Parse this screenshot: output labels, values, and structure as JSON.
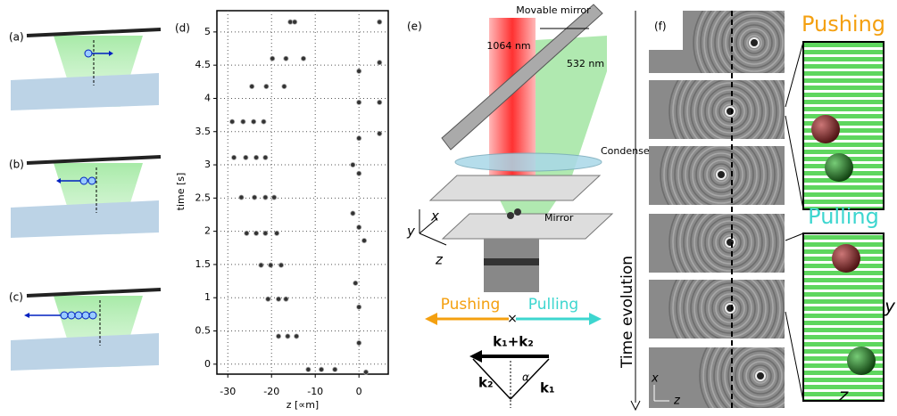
{
  "panel_a": {
    "label": "(a)"
  },
  "panel_b": {
    "label": "(b)"
  },
  "panel_c": {
    "label": "(c)"
  },
  "panel_d": {
    "label": "(d)",
    "xlabel": "z [∝m]",
    "ylabel": "time [s]",
    "xlim": [
      -32.5,
      6.7
    ],
    "ylim": [
      -0.15,
      5.32
    ],
    "xticks": [
      -30,
      -20,
      -10,
      0
    ],
    "yticks": [
      0,
      0.5,
      1,
      1.5,
      2,
      2.5,
      3,
      3.5,
      4,
      4.5,
      5
    ],
    "grid": true,
    "points": {
      "x": [
        -15.7,
        -14.7,
        4.7,
        -19.8,
        -16.7,
        -12.7,
        0,
        4.7,
        -24.5,
        -21.2,
        -17.1,
        0,
        4.7,
        -29,
        -26.5,
        -24.1,
        -21.8,
        0,
        4.7,
        -28.6,
        -25.9,
        -23.5,
        -21.4,
        0,
        -1.4,
        -26.9,
        -23.9,
        -21.4,
        -19.4,
        -1.4,
        0,
        -25.7,
        -23.5,
        -21.4,
        -18.8,
        1.2,
        -22.4,
        -20.2,
        -17.8,
        -0.8,
        -20.8,
        -18.4,
        -16.7,
        0,
        -18.4,
        -16.3,
        -14.3,
        0,
        -11.6,
        -8.6,
        -5.5,
        1.6
      ],
      "y": [
        5.15,
        5.15,
        5.15,
        4.6,
        4.6,
        4.6,
        4.41,
        4.54,
        4.18,
        4.18,
        4.18,
        3.94,
        3.94,
        3.65,
        3.65,
        3.65,
        3.65,
        3.4,
        3.47,
        3.11,
        3.11,
        3.11,
        3.11,
        2.87,
        3.0,
        2.51,
        2.51,
        2.51,
        2.51,
        2.27,
        2.06,
        1.97,
        1.97,
        1.97,
        1.97,
        1.86,
        1.49,
        1.49,
        1.49,
        1.22,
        0.98,
        0.98,
        0.98,
        0.86,
        0.42,
        0.42,
        0.42,
        0.32,
        -0.08,
        -0.08,
        -0.08,
        -0.12
      ]
    }
  },
  "panel_e": {
    "label": "(e)",
    "movable_mirror": "Movable mirror",
    "beam_ir": "1064 nm",
    "beam_green": "532 nm",
    "condenser": "Condenser lens",
    "mirror": "Mirror",
    "axis_x": "x",
    "axis_y": "y",
    "axis_z": "z",
    "pushing": "Pushing",
    "pulling": "Pulling",
    "k_sum": "k₁+k₂",
    "k2": "k₂",
    "k1": "k₁",
    "alpha": "α"
  },
  "panel_f": {
    "label": "(f)",
    "time_evolution": "Time evolution",
    "axis_x": "x",
    "axis_z": "z",
    "pushing": "Pushing",
    "pulling": "Pulling",
    "axis_y": "y",
    "axis_z_big": "z"
  }
}
